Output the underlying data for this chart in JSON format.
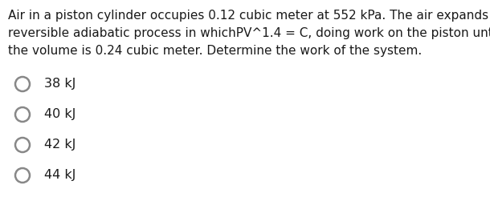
{
  "background_color": "#ffffff",
  "question_text_lines": [
    "Air in a piston cylinder occupies 0.12 cubic meter at 552 kPa. The air expands in",
    "reversible adiabatic process in whichPV^1.4 = C, doing work on the piston until",
    "the volume is 0.24 cubic meter. Determine the work of the system."
  ],
  "options": [
    "38 kJ",
    "40 kJ",
    "42 kJ",
    "44 kJ"
  ],
  "text_color": "#1a1a1a",
  "font_size_question": 11.0,
  "font_size_options": 11.5,
  "circle_color": "#888888",
  "fig_width": 6.1,
  "fig_height": 2.61,
  "dpi": 100
}
